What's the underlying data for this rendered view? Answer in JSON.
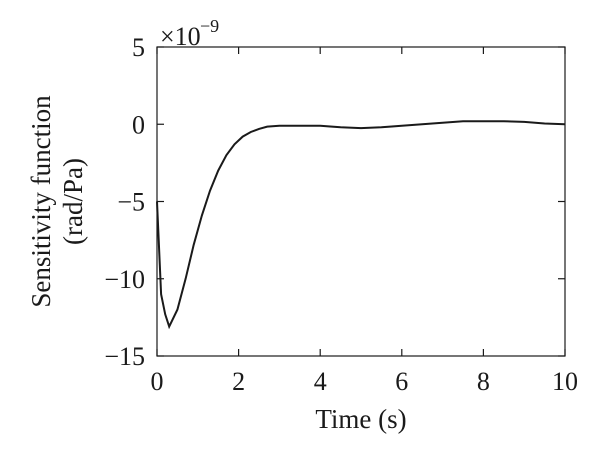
{
  "chart_data": {
    "type": "line",
    "title": "",
    "xlabel": "Time (s)",
    "ylabel_line1": "Sensitivity function",
    "ylabel_line2": "(rad/Pa)",
    "y_scale_base": "×10",
    "y_scale_exponent": "−9",
    "xlim": [
      0,
      10
    ],
    "ylim": [
      -15,
      5
    ],
    "xticks": [
      0,
      2,
      4,
      6,
      8,
      10
    ],
    "xtick_labels": [
      "0",
      "2",
      "4",
      "6",
      "8",
      "10"
    ],
    "yticks": [
      5,
      0,
      -5,
      -10,
      -15
    ],
    "ytick_labels": [
      "5",
      "0",
      "−5",
      "−10",
      "−15"
    ],
    "grid": false,
    "line_color": "#1a1a1a",
    "series": [
      {
        "x": [
          0,
          0.1,
          0.2,
          0.3,
          0.5,
          0.7,
          0.9,
          1.1,
          1.3,
          1.5,
          1.7,
          1.9,
          2.1,
          2.3,
          2.5,
          2.7,
          3.0,
          3.5,
          4.0,
          4.5,
          5.0,
          5.5,
          6.0,
          6.5,
          7.0,
          7.5,
          8.0,
          8.5,
          9.0,
          9.5,
          10.0
        ],
        "y": [
          -5.0,
          -11.0,
          -12.3,
          -13.1,
          -12.0,
          -10.0,
          -7.8,
          -5.9,
          -4.3,
          -3.0,
          -2.0,
          -1.3,
          -0.8,
          -0.5,
          -0.3,
          -0.15,
          -0.1,
          -0.1,
          -0.1,
          -0.2,
          -0.25,
          -0.2,
          -0.1,
          0.0,
          0.1,
          0.2,
          0.2,
          0.2,
          0.15,
          0.05,
          0.0
        ]
      }
    ]
  }
}
